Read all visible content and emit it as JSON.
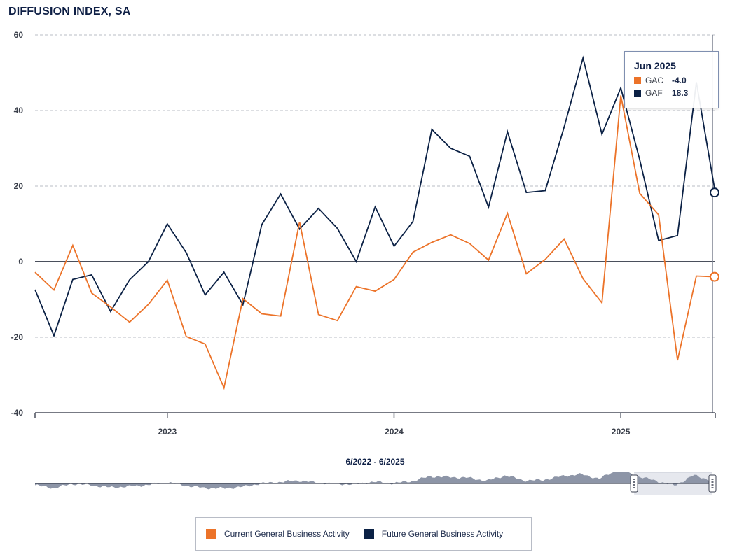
{
  "chart_data": {
    "type": "line",
    "title": "DIFFUSION INDEX, SA",
    "ylim": [
      -40,
      60
    ],
    "yticks": [
      60,
      40,
      20,
      0,
      -20,
      -40
    ],
    "xtick_labels": [
      "2023",
      "2024",
      "2025"
    ],
    "x": [
      "Jun 2022",
      "Jul 2022",
      "Aug 2022",
      "Sep 2022",
      "Oct 2022",
      "Nov 2022",
      "Dec 2022",
      "Jan 2023",
      "Feb 2023",
      "Mar 2023",
      "Apr 2023",
      "May 2023",
      "Jun 2023",
      "Jul 2023",
      "Aug 2023",
      "Sep 2023",
      "Oct 2023",
      "Nov 2023",
      "Dec 2023",
      "Jan 2024",
      "Feb 2024",
      "Mar 2024",
      "Apr 2024",
      "May 2024",
      "Jun 2024",
      "Jul 2024",
      "Aug 2024",
      "Sep 2024",
      "Oct 2024",
      "Nov 2024",
      "Dec 2024",
      "Jan 2025",
      "Feb 2025",
      "Mar 2025",
      "Apr 2025",
      "May 2025",
      "Jun 2025"
    ],
    "series": [
      {
        "name": "Current General Business Activity",
        "short": "GAC",
        "color": "#ec7329",
        "values": [
          -2.8,
          -7.5,
          4.3,
          -8.3,
          -12.0,
          -16.0,
          -11.3,
          -4.9,
          -19.8,
          -21.8,
          -33.4,
          -9.8,
          -13.8,
          -14.4,
          10.5,
          -14.0,
          -15.6,
          -6.6,
          -7.8,
          -4.7,
          2.5,
          5.1,
          7.1,
          4.8,
          0.4,
          12.8,
          -3.2,
          0.6,
          6.0,
          -4.5,
          -10.9,
          44.0,
          18.1,
          12.4,
          -26.1,
          -3.8,
          -4.0
        ]
      },
      {
        "name": "Future General Business Activity",
        "short": "GAF",
        "color": "#0b2145",
        "values": [
          -7.4,
          -19.6,
          -4.7,
          -3.5,
          -13.2,
          -4.8,
          0.0,
          10.0,
          2.4,
          -8.8,
          -2.8,
          -11.4,
          9.8,
          17.9,
          8.6,
          14.1,
          8.8,
          0.0,
          14.5,
          4.1,
          10.6,
          35.0,
          30.0,
          27.9,
          14.4,
          34.4,
          18.3,
          18.8,
          35.6,
          53.9,
          33.7,
          46.0,
          27.0,
          5.6,
          6.9,
          47.5,
          18.3
        ]
      }
    ],
    "range_label": "6/2022 - 6/2025",
    "grid": "horizontal-dashed",
    "legend_position": "bottom-center"
  },
  "tooltip": {
    "title": "Jun 2025",
    "rows": [
      {
        "name": "GAC",
        "value": "-4.0",
        "color": "#ec7329"
      },
      {
        "name": "GAF",
        "value": "18.3",
        "color": "#0b2145"
      }
    ]
  },
  "legend": [
    {
      "label": "Current General Business Activity",
      "color": "#ec7329"
    },
    {
      "label": "Future General Business Activity",
      "color": "#0b2145"
    }
  ]
}
